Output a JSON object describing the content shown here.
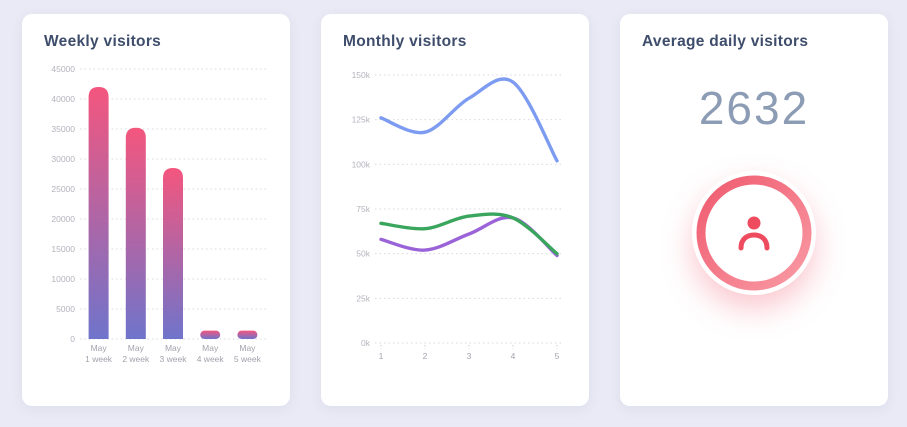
{
  "page_bg": "#e9eaf5",
  "icons": {
    "average_badge": "person-icon"
  },
  "chart_data": [
    {
      "type": "bar",
      "title": "Weekly visitors",
      "categories": [
        "May 1 week",
        "May 2 week",
        "May 3 week",
        "May 4 week",
        "May 5 week"
      ],
      "values": [
        42000,
        35200,
        28500,
        1400,
        1400
      ],
      "xlabel": "",
      "ylabel": "",
      "ylim": [
        0,
        45000
      ],
      "ytick_step": 5000,
      "grid": "horizontal-dotted",
      "legend": "none",
      "bar_gradient_top": "#f4567e",
      "bar_gradient_bottom": "#6f74cb"
    },
    {
      "type": "line",
      "title": "Monthly visitors",
      "x": [
        1,
        2,
        3,
        4,
        5
      ],
      "series": [
        {
          "name": "blue-series",
          "color": "#7d9cf1",
          "values": [
            126000,
            118000,
            137000,
            146000,
            102000
          ]
        },
        {
          "name": "purple-series",
          "color": "#9a63d8",
          "values": [
            58000,
            52000,
            61000,
            70000,
            49000
          ]
        },
        {
          "name": "green-series",
          "color": "#3aa55c",
          "values": [
            67000,
            64000,
            71000,
            70000,
            50000
          ]
        }
      ],
      "xlabel": "",
      "ylabel": "",
      "ylim": [
        0,
        150000
      ],
      "ytick_labels": [
        "0k",
        "25k",
        "50k",
        "75k",
        "100k",
        "125k",
        "150k"
      ],
      "grid": "horizontal-dotted",
      "legend": "none"
    },
    {
      "type": "number",
      "title": "Average daily visitors",
      "value": "2632",
      "value_color": "#8c9cb5",
      "ring_gradient": [
        "#ef5b6f",
        "#f99aa4"
      ],
      "icon": "person-icon",
      "icon_color": "#ee4b5e"
    }
  ]
}
